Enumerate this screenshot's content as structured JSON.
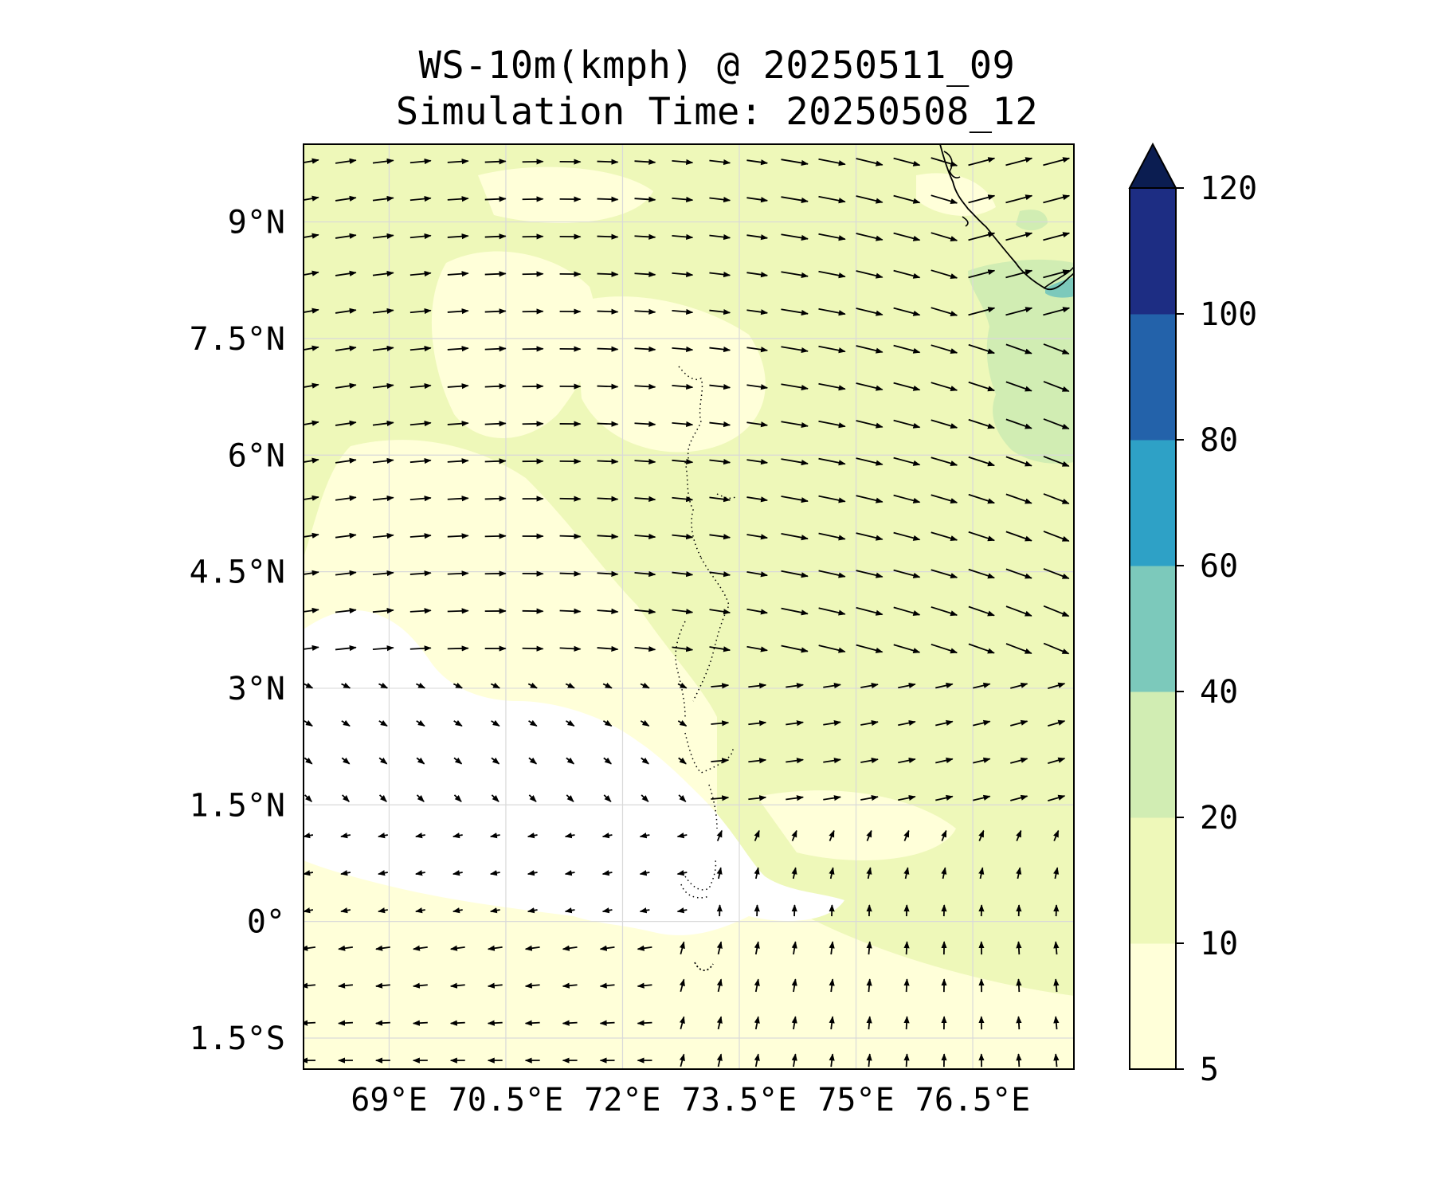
{
  "title": {
    "line1": "WS-10m(kmph) @ 20250511_09",
    "line2": "Simulation Time: 20250508_12"
  },
  "map": {
    "lon_range": [
      67.9,
      77.8
    ],
    "lat_range": [
      -1.9,
      10.0
    ],
    "lon_ticks": [
      {
        "value": 69.0,
        "label": "69°E"
      },
      {
        "value": 70.5,
        "label": "70.5°E"
      },
      {
        "value": 72.0,
        "label": "72°E"
      },
      {
        "value": 73.5,
        "label": "73.5°E"
      },
      {
        "value": 75.0,
        "label": "75°E"
      },
      {
        "value": 76.5,
        "label": "76.5°E"
      }
    ],
    "lat_ticks": [
      {
        "value": 9.0,
        "label": "9°N"
      },
      {
        "value": 7.5,
        "label": "7.5°N"
      },
      {
        "value": 6.0,
        "label": "6°N"
      },
      {
        "value": 4.5,
        "label": "4.5°N"
      },
      {
        "value": 3.0,
        "label": "3°N"
      },
      {
        "value": 1.5,
        "label": "1.5°N"
      },
      {
        "value": 0.0,
        "label": "0°"
      },
      {
        "value": -1.5,
        "label": "1.5°S"
      }
    ],
    "grid": true,
    "colors": {
      "lt5": "#ffffff",
      "c5_10": "#ffffd9",
      "c10_20": "#eef8b9",
      "c20_40": "#d1edb3",
      "c40_60": "#7cc9bb",
      "coast": "#000000"
    }
  },
  "colorbar": {
    "levels": [
      5,
      10,
      20,
      40,
      60,
      80,
      100,
      120
    ],
    "tick_labels": [
      "5",
      "10",
      "20",
      "40",
      "60",
      "80",
      "100",
      "120"
    ],
    "colors": [
      "#ffffd9",
      "#eef8b9",
      "#d1edb3",
      "#7cc9bb",
      "#2ea1c6",
      "#2362aa",
      "#1d2d83"
    ],
    "extend_color": "#0b1d51",
    "extend": "max"
  }
}
